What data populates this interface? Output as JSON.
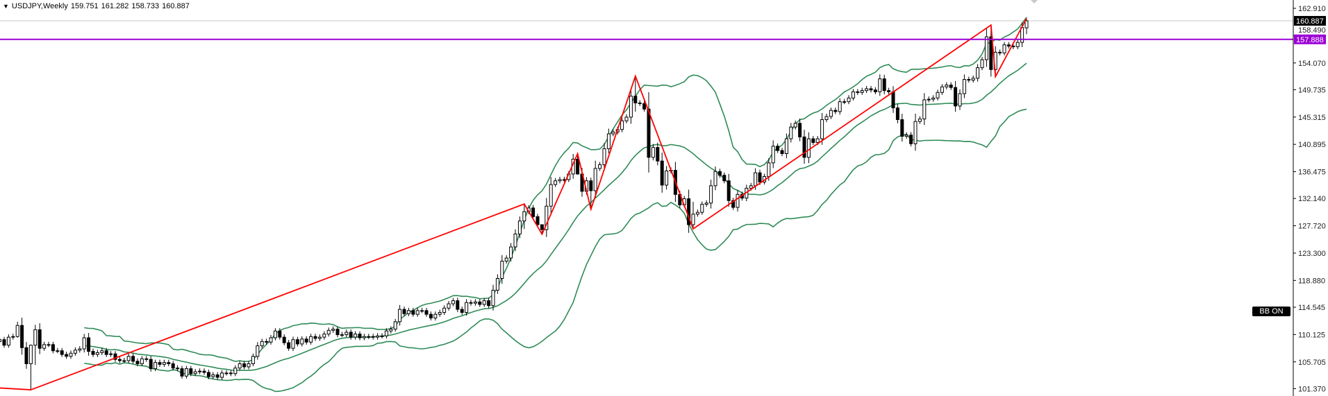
{
  "header": {
    "menu_icon": "triangle-down-icon",
    "symbol": "USDJPY,Weekly",
    "open": "159.751",
    "high": "161.282",
    "low": "158.733",
    "close": "160.887"
  },
  "indicator_badge": "BB ON",
  "colors": {
    "bull_body": "#ffffff",
    "bear_body": "#000000",
    "candle_outline": "#000000",
    "bands": "#2e8b57",
    "zigzag": "#ff0000",
    "level_line": "#9b00d6",
    "bid_line": "#c8c8c8"
  },
  "chart_data": {
    "type": "candlestick",
    "title": "USDJPY,Weekly",
    "ylim": [
      100.2,
      164.2
    ],
    "y_ticks": [
      "162.910",
      "158.490",
      "154.070",
      "149.735",
      "145.315",
      "140.895",
      "136.475",
      "132.140",
      "127.720",
      "123.300",
      "118.880",
      "114.545",
      "110.125",
      "105.705",
      "101.370"
    ],
    "current_price": {
      "value": 160.887,
      "label": "160.887"
    },
    "horizontal_level": {
      "value": 157.888,
      "label": "157.888"
    },
    "closes": [
      109.3,
      108.4,
      109.7,
      109.8,
      111.6,
      108.0,
      105.4,
      108.4,
      110.9,
      107.9,
      108.5,
      108.5,
      107.5,
      107.5,
      106.9,
      106.6,
      107.1,
      107.6,
      107.8,
      109.6,
      107.4,
      106.9,
      107.2,
      107.5,
      106.9,
      107.0,
      106.1,
      105.9,
      105.9,
      106.6,
      105.8,
      105.4,
      106.2,
      106.1,
      104.6,
      105.6,
      105.3,
      105.6,
      105.4,
      104.7,
      104.6,
      103.4,
      104.6,
      103.8,
      104.1,
      104.2,
      104.0,
      103.3,
      103.6,
      103.2,
      103.9,
      103.9,
      103.8,
      104.7,
      105.4,
      104.9,
      105.4,
      106.6,
      108.3,
      109.0,
      108.9,
      109.6,
      110.7,
      109.7,
      108.8,
      107.9,
      109.3,
      108.6,
      109.4,
      108.9,
      109.8,
      109.5,
      109.7,
      110.2,
      110.8,
      111.0,
      110.1,
      110.1,
      110.5,
      109.7,
      110.2,
      109.6,
      109.8,
      109.8,
      109.7,
      109.9,
      109.9,
      110.7,
      111.0,
      112.2,
      114.2,
      113.5,
      114.0,
      113.4,
      114.0,
      114.0,
      113.4,
      112.8,
      113.4,
      113.7,
      114.4,
      115.1,
      115.6,
      114.2,
      113.7,
      115.3,
      115.2,
      115.4,
      115.0,
      115.6,
      114.8,
      117.3,
      119.2,
      122.0,
      122.5,
      124.3,
      126.4,
      128.5,
      130.0,
      130.6,
      129.2,
      127.9,
      127.1,
      130.9,
      134.4,
      135.0,
      135.2,
      135.2,
      136.1,
      138.5,
      136.1,
      133.3,
      135.0,
      133.4,
      137.0,
      137.6,
      140.2,
      142.6,
      142.9,
      143.3,
      144.7,
      145.3,
      148.7,
      147.6,
      147.5,
      146.6,
      138.8,
      140.4,
      138.2,
      134.3,
      136.6,
      136.7,
      132.8,
      131.1,
      132.1,
      127.9,
      129.6,
      129.9,
      131.2,
      131.4,
      134.2,
      136.5,
      135.9,
      135.0,
      131.8,
      130.7,
      132.8,
      132.2,
      133.8,
      134.2,
      136.3,
      134.8,
      135.7,
      137.9,
      140.6,
      139.9,
      139.4,
      141.8,
      143.7,
      144.3,
      142.1,
      138.8,
      141.8,
      141.2,
      141.8,
      144.9,
      145.4,
      146.4,
      146.2,
      147.8,
      147.8,
      148.4,
      149.4,
      149.3,
      149.6,
      149.9,
      149.7,
      149.4,
      151.5,
      149.6,
      149.4,
      146.8,
      144.9,
      142.2,
      142.4,
      141.0,
      144.6,
      145.0,
      148.1,
      148.2,
      148.4,
      149.3,
      150.2,
      150.5,
      150.1,
      147.1,
      149.1,
      151.4,
      151.3,
      151.6,
      153.3,
      154.6,
      158.3,
      153.0,
      155.8,
      155.7,
      157.0,
      156.8,
      156.7,
      157.4,
      159.8,
      160.887
    ],
    "ohlc_overrides": [
      {
        "i": 4,
        "h": 112.2,
        "l": 109.6
      },
      {
        "i": 7,
        "o": 105.4,
        "h": 108.5,
        "l": 101.18
      },
      {
        "i": 8,
        "h": 111.7,
        "l": 105.2
      },
      {
        "i": 118,
        "h": 131.25,
        "l": 127.2
      },
      {
        "i": 122,
        "h": 127.6,
        "l": 126.36
      },
      {
        "i": 130,
        "h": 139.39,
        "l": 136.0
      },
      {
        "i": 133,
        "h": 135.5,
        "l": 130.39
      },
      {
        "i": 143,
        "h": 151.95,
        "l": 146.2
      },
      {
        "i": 156,
        "h": 131.6,
        "l": 127.22
      },
      {
        "i": 223,
        "o": 158.3,
        "h": 160.2,
        "l": 151.86
      },
      {
        "i": 231,
        "o": 159.751,
        "h": 161.282,
        "l": 158.733
      }
    ],
    "zigzag": [
      [
        -10,
        101.9
      ],
      [
        7,
        101.18
      ],
      [
        118,
        131.25
      ],
      [
        122,
        126.36
      ],
      [
        130,
        139.39
      ],
      [
        133,
        130.39
      ],
      [
        143,
        151.95
      ],
      [
        156,
        127.22
      ],
      [
        223,
        160.2
      ],
      [
        224,
        151.86
      ],
      [
        231,
        161.282
      ]
    ],
    "bollinger": {
      "period": 20,
      "deviation": 2
    }
  }
}
